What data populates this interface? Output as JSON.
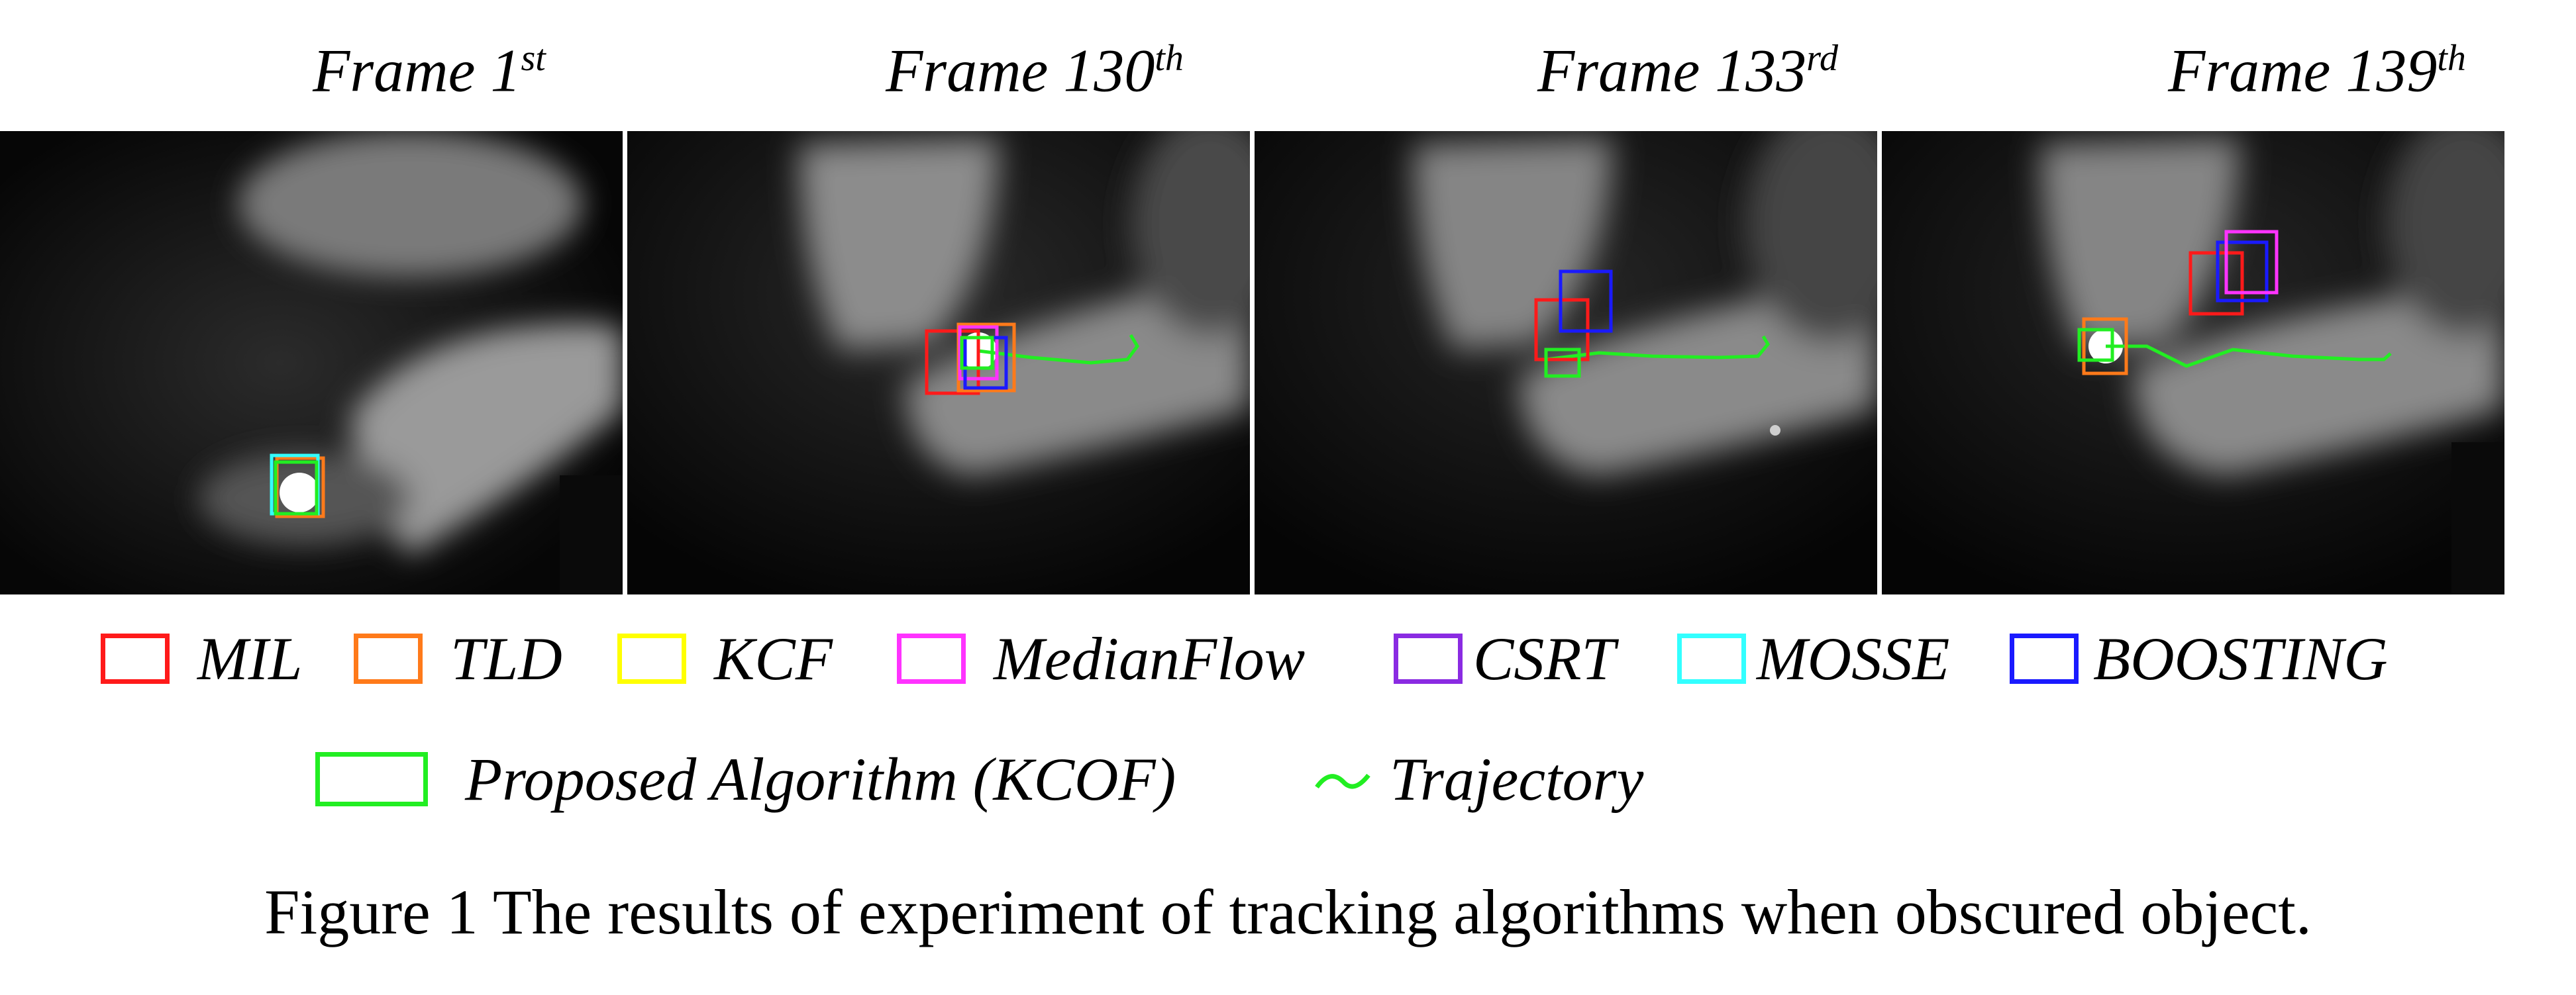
{
  "frames": [
    {
      "base": "Frame 1",
      "sup": "st"
    },
    {
      "base": "Frame 130",
      "sup": "th"
    },
    {
      "base": "Frame 133",
      "sup": "rd"
    },
    {
      "base": "Frame 139",
      "sup": "th"
    }
  ],
  "legend": [
    {
      "label": "MIL",
      "color": "#ff1a1a"
    },
    {
      "label": "TLD",
      "color": "#ff7a1a"
    },
    {
      "label": "KCF",
      "color": "#ffff00"
    },
    {
      "label": "MedianFlow",
      "color": "#ff33ff"
    },
    {
      "label": "CSRT",
      "color": "#8a2be2"
    },
    {
      "label": "MOSSE",
      "color": "#33ffff"
    },
    {
      "label": "BOOSTING",
      "color": "#1a1aff"
    },
    {
      "label": "Proposed Algorithm (KCOF)",
      "color": "#22ee22"
    },
    {
      "label": "Trajectory",
      "color": "#22ee22"
    }
  ],
  "caption": "Figure 1 The results of experiment of tracking algorithms when obscured object."
}
